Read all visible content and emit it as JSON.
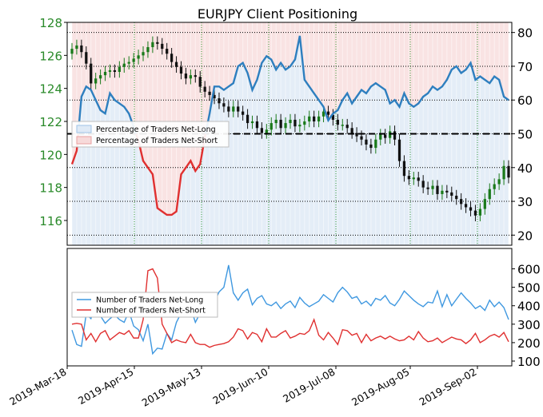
{
  "chart_data": [
    {
      "type": "candlestick+line",
      "title": "EURJPY Client Positioning",
      "colors": {
        "price_axis_text": "#2a8a2a",
        "up_candle": "#1a7a1a",
        "down_candle": "#111111",
        "net_long": "#2e7fbf",
        "net_short": "#e03030",
        "long_fill": "#dfeaf6",
        "short_fill": "#f7dada",
        "grid_vertical": "#3aa03a",
        "grid_horizontal": "#000000"
      },
      "x_labels": [
        "2019-Mar-18",
        "2019-Apr-15",
        "2019-May-13",
        "2019-Jun-10",
        "2019-Jul-08",
        "2019-Aug-05",
        "2019-Sep-02"
      ],
      "left_axis": {
        "label": "",
        "ticks": [
          116,
          118,
          120,
          122,
          124,
          126,
          128
        ],
        "range": [
          114.5,
          128
        ]
      },
      "right_axis": {
        "label": "",
        "ticks": [
          20,
          30,
          40,
          50,
          60,
          70,
          80
        ],
        "range": [
          17,
          83
        ]
      },
      "reference_line": 50,
      "legend": {
        "position": "left",
        "entries": [
          "Percentage of Traders Net-Long",
          "Percentage of Traders Net-Short"
        ]
      },
      "price_close": [
        126.4,
        126.6,
        126.2,
        125.5,
        124.3,
        124.6,
        124.8,
        125.0,
        125.1,
        125.0,
        125.3,
        125.5,
        125.6,
        125.8,
        126.0,
        126.2,
        126.5,
        126.8,
        126.7,
        126.4,
        126.1,
        125.6,
        125.3,
        124.9,
        124.6,
        124.8,
        124.7,
        124.1,
        123.8,
        123.6,
        123.4,
        123.1,
        122.9,
        122.6,
        122.9,
        122.6,
        122.4,
        121.9,
        122.0,
        121.6,
        121.3,
        121.5,
        121.9,
        122.1,
        121.6,
        121.9,
        122.1,
        121.7,
        121.8,
        122.0,
        122.3,
        122.0,
        122.3,
        122.6,
        122.4,
        122.1,
        121.8,
        121.8,
        121.6,
        121.3,
        121.1,
        120.9,
        120.6,
        120.4,
        120.9,
        121.2,
        121.0,
        121.4,
        120.9,
        119.6,
        118.7,
        118.5,
        118.6,
        118.4,
        118.0,
        117.9,
        118.1,
        117.6,
        117.8,
        117.7,
        117.5,
        117.3,
        117.0,
        116.8,
        116.6,
        116.3,
        116.7,
        117.3,
        117.9,
        118.2,
        118.5,
        119.3,
        118.6
      ],
      "pct_long": [
        41,
        45,
        61,
        64,
        63,
        60,
        57,
        56,
        62,
        60,
        59,
        58,
        56,
        52,
        48,
        42,
        40,
        38,
        28,
        27,
        26,
        26,
        27,
        38,
        40,
        42,
        39,
        41,
        49,
        56,
        64,
        64,
        63,
        64,
        65,
        70,
        71,
        68,
        63,
        66,
        71,
        73,
        72,
        69,
        71,
        69,
        70,
        72,
        79,
        66,
        64,
        62,
        60,
        58,
        54,
        56,
        57,
        60,
        62,
        59,
        61,
        63,
        62,
        64,
        65,
        64,
        63,
        59,
        60,
        58,
        62,
        59,
        58,
        59,
        61,
        62,
        64,
        63,
        64,
        66,
        69,
        70,
        68,
        69,
        71,
        66,
        67,
        66,
        65,
        67,
        66,
        61,
        60
      ]
    },
    {
      "type": "line",
      "title": "",
      "legend": {
        "position": "left"
      },
      "right_axis": {
        "label": "",
        "ticks": [
          100,
          200,
          300,
          400,
          500,
          600
        ],
        "range": [
          100,
          650
        ]
      },
      "series": [
        {
          "name": "Number of Traders Net-Long",
          "color": "#3f98e0",
          "values": [
            268,
            190,
            180,
            355,
            330,
            410,
            345,
            305,
            330,
            350,
            325,
            310,
            370,
            290,
            270,
            210,
            300,
            140,
            170,
            165,
            250,
            215,
            310,
            360,
            400,
            390,
            310,
            360,
            385,
            400,
            420,
            475,
            500,
            620,
            470,
            430,
            470,
            490,
            405,
            440,
            455,
            410,
            400,
            420,
            385,
            410,
            425,
            390,
            445,
            415,
            395,
            410,
            425,
            460,
            440,
            420,
            470,
            500,
            475,
            440,
            450,
            410,
            425,
            400,
            440,
            430,
            455,
            415,
            400,
            435,
            480,
            455,
            430,
            410,
            395,
            420,
            415,
            480,
            395,
            460,
            400,
            435,
            470,
            440,
            415,
            385,
            400,
            375,
            430,
            395,
            420,
            390,
            325
          ]
        },
        {
          "name": "Number of Traders Net-Short",
          "color": "#e03030",
          "values": [
            300,
            305,
            300,
            215,
            250,
            205,
            250,
            265,
            215,
            235,
            255,
            245,
            265,
            225,
            225,
            325,
            590,
            600,
            550,
            300,
            250,
            200,
            215,
            205,
            200,
            245,
            200,
            190,
            190,
            175,
            185,
            190,
            195,
            205,
            230,
            275,
            265,
            220,
            255,
            245,
            205,
            275,
            230,
            230,
            250,
            265,
            225,
            235,
            250,
            245,
            265,
            325,
            240,
            215,
            255,
            225,
            190,
            270,
            265,
            240,
            250,
            200,
            245,
            210,
            225,
            235,
            220,
            235,
            220,
            210,
            215,
            235,
            215,
            260,
            225,
            205,
            210,
            225,
            200,
            215,
            230,
            220,
            215,
            195,
            215,
            250,
            200,
            215,
            235,
            245,
            230,
            255,
            205
          ]
        }
      ]
    }
  ]
}
